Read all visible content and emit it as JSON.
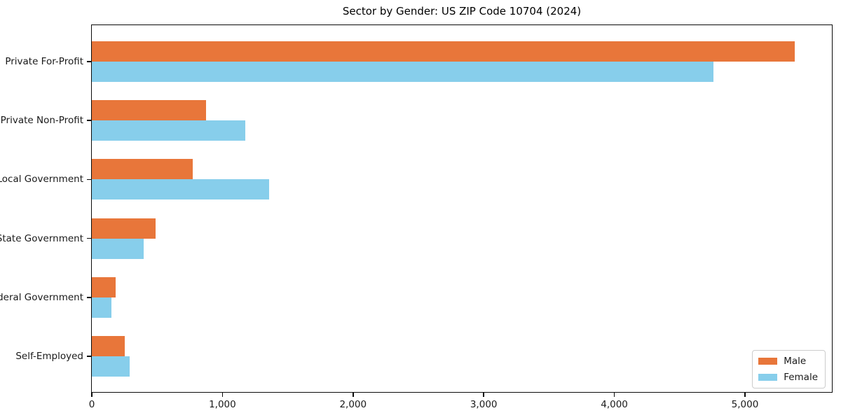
{
  "chart_data": {
    "type": "bar",
    "orientation": "horizontal",
    "title": "Sector by Gender: US ZIP Code 10704 (2024)",
    "categories": [
      "Private For-Profit",
      "Private Non-Profit",
      "Local Government",
      "State Government",
      "Federal Government",
      "Self-Employed"
    ],
    "series": [
      {
        "name": "Male",
        "color": "#E8763A",
        "values": [
          5380,
          875,
          770,
          490,
          180,
          250
        ]
      },
      {
        "name": "Female",
        "color": "#87CEEB",
        "values": [
          4760,
          1175,
          1360,
          395,
          150,
          290
        ]
      }
    ],
    "xlabel": "",
    "ylabel": "",
    "xlim": [
      0,
      5660
    ],
    "xticks": {
      "values": [
        0,
        1000,
        2000,
        3000,
        4000,
        5000
      ],
      "labels": [
        "0",
        "1,000",
        "2,000",
        "3,000",
        "4,000",
        "5,000"
      ]
    },
    "grid": false,
    "legend": {
      "position": "lower right",
      "entries": [
        "Male",
        "Female"
      ]
    }
  },
  "colors": {
    "male": "#E8763A",
    "female": "#87CEEB",
    "spine": "#0b0b0b",
    "tick_label": "#1a1a1a",
    "legend_border": "#cccccc",
    "background": "#ffffff"
  }
}
